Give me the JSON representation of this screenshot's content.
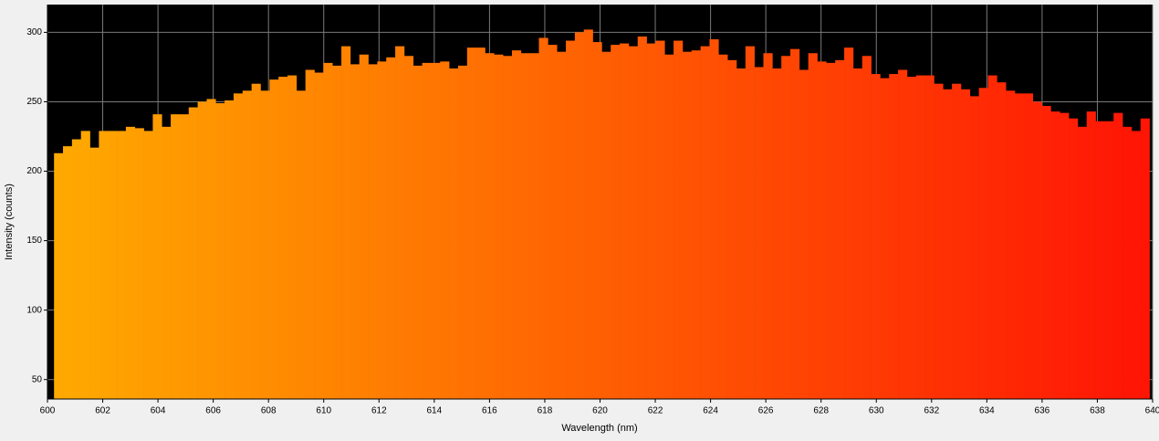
{
  "chart_data": {
    "type": "bar",
    "x_label": "Wavelength (nm)",
    "y_label": "Intensity (counts)",
    "x": [
      600.4,
      600.725,
      601.05,
      601.375,
      601.7,
      602.025,
      602.35,
      602.675,
      603,
      603.325,
      603.65,
      603.975,
      604.3,
      604.625,
      604.95,
      605.275,
      605.6,
      605.925,
      606.25,
      606.575,
      606.9,
      607.225,
      607.55,
      607.875,
      608.2,
      608.525,
      608.85,
      609.175,
      609.5,
      609.825,
      610.15,
      610.475,
      610.8,
      611.125,
      611.45,
      611.775,
      612.1,
      612.425,
      612.75,
      613.075,
      613.4,
      613.725,
      614.05,
      614.375,
      614.7,
      615.025,
      615.35,
      615.675,
      616,
      616.325,
      616.65,
      616.975,
      617.3,
      617.625,
      617.95,
      618.275,
      618.6,
      618.925,
      619.25,
      619.575,
      619.9,
      620.225,
      620.55,
      620.875,
      621.2,
      621.525,
      621.85,
      622.175,
      622.5,
      622.825,
      623.15,
      623.475,
      623.8,
      624.125,
      624.45,
      624.775,
      625.1,
      625.425,
      625.75,
      626.075,
      626.4,
      626.725,
      627.05,
      627.375,
      627.7,
      628.025,
      628.35,
      628.675,
      629,
      629.325,
      629.65,
      629.975,
      630.3,
      630.625,
      630.95,
      631.275,
      631.6,
      631.925,
      632.25,
      632.575,
      632.9,
      633.225,
      633.55,
      633.875,
      634.2,
      634.525,
      634.85,
      635.175,
      635.5,
      635.825,
      636.15,
      636.475,
      636.8,
      637.125,
      637.45,
      637.775,
      638.1,
      638.425,
      638.75,
      639.075,
      639.4,
      639.725
    ],
    "values": [
      213,
      218,
      223,
      229,
      217,
      229,
      229,
      229,
      232,
      231,
      229,
      241,
      232,
      241,
      241,
      246,
      250,
      252,
      249,
      251,
      256,
      258,
      263,
      258,
      266,
      268,
      269,
      258,
      273,
      271,
      278,
      276,
      290,
      277,
      284,
      277,
      279,
      282,
      290,
      283,
      276,
      278,
      278,
      279,
      274,
      276,
      289,
      289,
      285,
      284,
      283,
      287,
      285,
      285,
      296,
      291,
      286,
      294,
      300,
      302,
      293,
      286,
      291,
      292,
      290,
      297,
      292,
      294,
      284,
      294,
      286,
      287,
      290,
      295,
      284,
      280,
      274,
      290,
      275,
      285,
      274,
      283,
      288,
      273,
      285,
      279,
      278,
      280,
      289,
      274,
      283,
      270,
      267,
      270,
      273,
      268,
      269,
      269,
      263,
      259,
      263,
      259,
      254,
      260,
      269,
      264,
      258,
      256,
      256,
      250,
      247,
      243,
      242,
      238,
      232,
      243,
      236,
      236,
      242,
      232,
      229,
      238
    ],
    "color_gradient": [
      "#ffab00",
      "#ff1405"
    ],
    "background": "#000000",
    "xlim": [
      600,
      640
    ],
    "xticks": [
      600,
      602,
      604,
      606,
      608,
      610,
      612,
      614,
      616,
      618,
      620,
      622,
      624,
      626,
      628,
      630,
      632,
      634,
      636,
      638,
      640
    ],
    "ylim": [
      36,
      320
    ],
    "yticks": [
      50,
      100,
      150,
      200,
      250,
      300
    ],
    "grid": true
  }
}
